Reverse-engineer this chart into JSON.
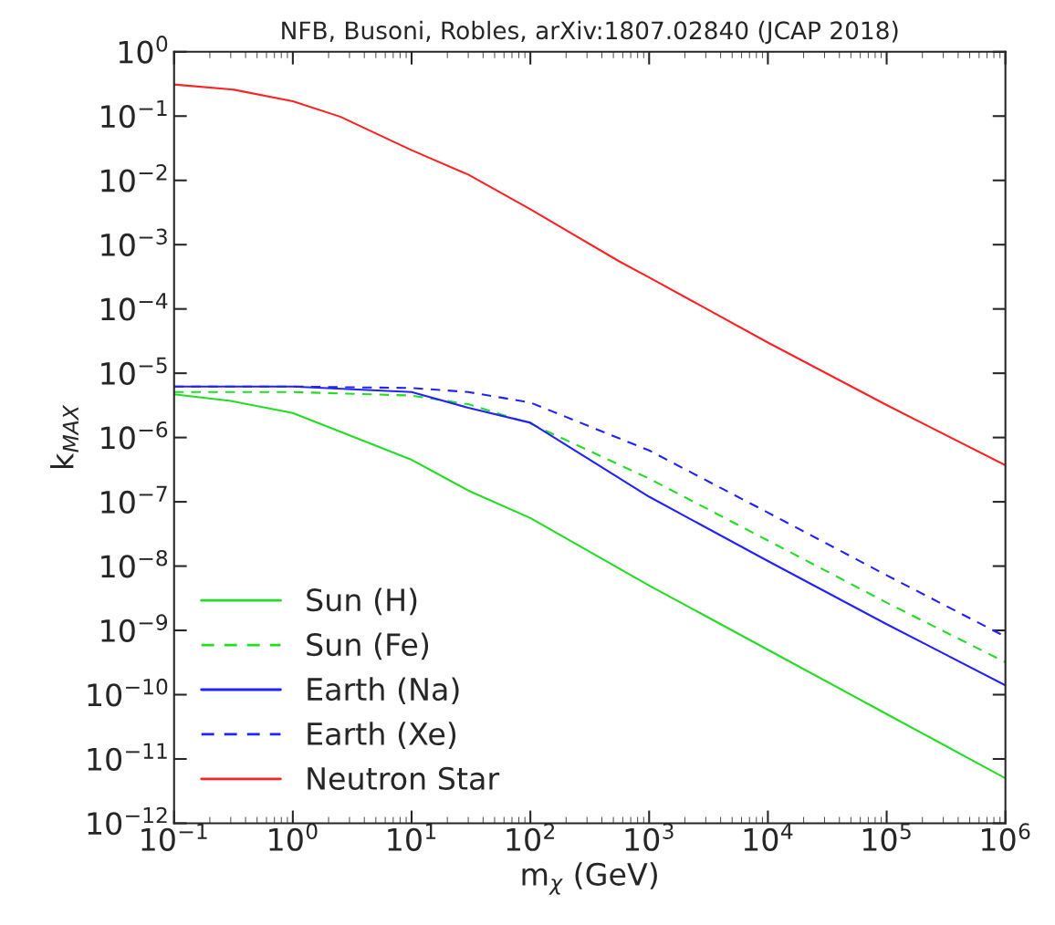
{
  "chart_data": {
    "type": "line",
    "title": "NFB, Busoni, Robles, arXiv:1807.02840 (JCAP 2018)",
    "xlabel": "m$_{χ}$ (GeV)",
    "ylabel": "k$_{MAX}$",
    "log": "xy",
    "grid": false,
    "legend": "bottom left",
    "xlim": [
      0.1,
      1000000
    ],
    "ylim": [
      1e-12,
      1
    ],
    "xticks": [
      {
        "value": 0.1,
        "label": "10$^{−1}$"
      },
      {
        "value": 1,
        "label": "10$^{0}$"
      },
      {
        "value": 10,
        "label": "10$^{1}$"
      },
      {
        "value": 100,
        "label": "10$^{2}$"
      },
      {
        "value": 1000,
        "label": "10$^{3}$"
      },
      {
        "value": 10000,
        "label": "10$^{4}$"
      },
      {
        "value": 100000,
        "label": "10$^{5}$"
      },
      {
        "value": 1000000,
        "label": "10$^{6}$"
      }
    ],
    "yticks": [
      {
        "value": 1e-12,
        "label": "10$^{−12}$"
      },
      {
        "value": 1e-11,
        "label": "10$^{−11}$"
      },
      {
        "value": 1e-10,
        "label": "10$^{−10}$"
      },
      {
        "value": 1e-09,
        "label": "10$^{−9}$"
      },
      {
        "value": 1e-08,
        "label": "10$^{−8}$"
      },
      {
        "value": 1e-07,
        "label": "10$^{−7}$"
      },
      {
        "value": 1e-06,
        "label": "10$^{−6}$"
      },
      {
        "value": 1e-05,
        "label": "10$^{−5}$"
      },
      {
        "value": 0.0001,
        "label": "10$^{−4}$"
      },
      {
        "value": 0.001,
        "label": "10$^{−3}$"
      },
      {
        "value": 0.01,
        "label": "10$^{−2}$"
      },
      {
        "value": 0.1,
        "label": "10$^{−1}$"
      },
      {
        "value": 1,
        "label": "10$^{0}$"
      }
    ],
    "series": [
      {
        "name": "Sun (H)",
        "color": "#22dd22",
        "line_style": "solid",
        "x": [
          0.1,
          0.3,
          1,
          10,
          30,
          100,
          1000,
          10000,
          100000,
          1000000
        ],
        "values": [
          4.7e-06,
          3.7e-06,
          2.4e-06,
          4.5e-07,
          1.5e-07,
          5.6e-08,
          5e-09,
          5e-10,
          5e-11,
          5e-12
        ]
      },
      {
        "name": "Sun (Fe)",
        "color": "#22dd22",
        "line_style": "dashed",
        "x": [
          0.1,
          1,
          10,
          30,
          100,
          1000,
          10000,
          100000,
          1000000
        ],
        "values": [
          5.1e-06,
          5.1e-06,
          4.5e-06,
          3.3e-06,
          1.65e-06,
          2.3e-07,
          2.5e-08,
          2.7e-09,
          3.2e-10
        ]
      },
      {
        "name": "Earth (Na)",
        "color": "#2222ff",
        "line_style": "solid",
        "x": [
          0.1,
          1,
          10,
          30,
          100,
          1000,
          10000,
          100000,
          1000000
        ],
        "values": [
          6.2e-06,
          6.2e-06,
          5.1e-06,
          2.9e-06,
          1.7e-06,
          1.2e-07,
          1.2e-08,
          1.25e-09,
          1.4e-10
        ]
      },
      {
        "name": "Earth (Xe)",
        "color": "#2222ff",
        "line_style": "dashed",
        "x": [
          0.1,
          1,
          10,
          30,
          100,
          1000,
          10000,
          100000,
          1000000
        ],
        "values": [
          6.2e-06,
          6.2e-06,
          5.9e-06,
          5.1e-06,
          3.5e-06,
          6.3e-07,
          6.8e-08,
          7.2e-09,
          8e-10
        ]
      },
      {
        "name": "Neutron Star",
        "color": "#ff2222",
        "line_style": "solid",
        "x": [
          0.1,
          0.32,
          1,
          2.5,
          10,
          30,
          100,
          560,
          1000,
          10000,
          100000,
          1000000
        ],
        "values": [
          0.31,
          0.257,
          0.17,
          0.098,
          0.0295,
          0.0123,
          0.00355,
          0.00055,
          0.00031,
          3e-05,
          3.2e-06,
          3.7e-07
        ]
      }
    ]
  }
}
